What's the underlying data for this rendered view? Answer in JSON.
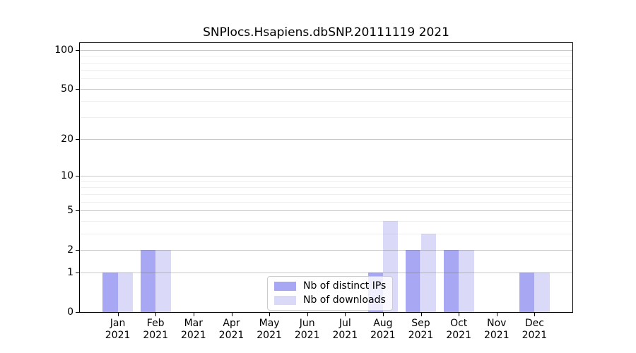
{
  "chart_data": {
    "type": "bar",
    "title": "SNPlocs.Hsapiens.dbSNP.20111119 2021",
    "categories": [
      "Jan 2021",
      "Feb 2021",
      "Mar 2021",
      "Apr 2021",
      "May 2021",
      "Jun 2021",
      "Jul 2021",
      "Aug 2021",
      "Sep 2021",
      "Oct 2021",
      "Nov 2021",
      "Dec 2021"
    ],
    "series": [
      {
        "name": "Nb of distinct IPs",
        "color": "#a7a7f4",
        "values": [
          1,
          2,
          0,
          0,
          0,
          0,
          0,
          1,
          2,
          2,
          0,
          1
        ]
      },
      {
        "name": "Nb of downloads",
        "color": "#dadaf8",
        "values": [
          1,
          2,
          0,
          0,
          0,
          0,
          0,
          4,
          3,
          2,
          0,
          1
        ]
      }
    ],
    "scale": "log1p",
    "ylim": [
      0,
      113
    ],
    "yticks": [
      0,
      1,
      2,
      5,
      10,
      20,
      50,
      100
    ],
    "minor_gridlines": [
      3,
      4,
      6,
      7,
      8,
      9,
      30,
      40,
      60,
      70,
      80,
      90
    ],
    "grid": "horizontal, drawn above bars",
    "legend_position": "inside bottom-center",
    "xlabel": "",
    "ylabel": "",
    "colors": {
      "axis": "#000000",
      "major_grid": "rgba(100,100,100,0.35)",
      "minor_grid": "rgba(100,100,100,0.10)",
      "plot_background": "#ffffff",
      "figure_background": "#ffffff"
    }
  }
}
